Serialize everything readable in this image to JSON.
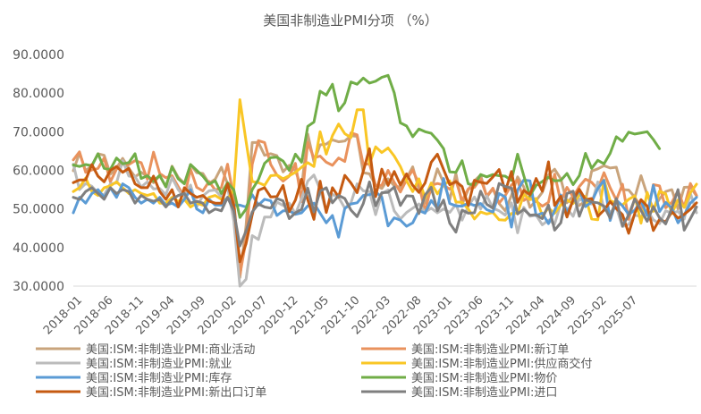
{
  "chart_data": {
    "type": "line",
    "title": "美国非制造业PMI分项 （%）",
    "xlabel": "",
    "ylabel": "",
    "ylim": [
      30,
      90
    ],
    "yticks": [
      "30.0000",
      "40.0000",
      "50.0000",
      "60.0000",
      "70.0000",
      "80.0000",
      "90.0000"
    ],
    "grid": false,
    "legend_position": "bottom",
    "x_start": "2018-01",
    "x_tick_labels": [
      "2018-01",
      "2018-06",
      "2018-11",
      "2019-04",
      "2019-09",
      "2020-02",
      "2020-07",
      "2020-12",
      "2021-05",
      "2021-10",
      "2022-03",
      "2022-08",
      "2023-01",
      "2023-06",
      "2023-11",
      "2024-04",
      "2024-09",
      "2025-02",
      "2025-07"
    ],
    "series": [
      {
        "name": "美国:ISM:非制造业PMI:商业活动",
        "color": "#C9A47C",
        "values": [
          59.9,
          64.5,
          59.9,
          61.2,
          64.3,
          63.9,
          59.0,
          60.6,
          63.1,
          60.5,
          58.3,
          59.5,
          58.5,
          56.8,
          58.6,
          55.8,
          61.1,
          58.2,
          56.6,
          61.5,
          59.4,
          59.2,
          56.6,
          57.7,
          60.8,
          56.5,
          50.5,
          32.2,
          45.7,
          67.2,
          67.2,
          63.9,
          64.3,
          63.8,
          59.6,
          61.3,
          59.9,
          55.5,
          69.4,
          62.2,
          66.6,
          66.8,
          67.9,
          67.4,
          67.6,
          69.0,
          68.8,
          59.4,
          59.1,
          56.1,
          55.3,
          57.8,
          56.0,
          55.6,
          57.9,
          60.9,
          55.1,
          51.5,
          54.9,
          60.4,
          56.8,
          52.4,
          59.2,
          51.2,
          55.0,
          57.3,
          58.8,
          53.1,
          55.2,
          51.4,
          49.5,
          53.5,
          58.3,
          55.7,
          50.4,
          52.2,
          54.3,
          58.8,
          60.3,
          57.8,
          51.6,
          53.4,
          50.9,
          52.1,
          59.8,
          60.4,
          61.2,
          60.6,
          60.8,
          55.0,
          54.9,
          53.0,
          58.6,
          53.7,
          50.1,
          52.6,
          54.5,
          55.0,
          50.0,
          55.6,
          55.7,
          53.4
        ]
      },
      {
        "name": "美国:ISM:非制造业PMI:新订单",
        "color": "#E9925D",
        "values": [
          62.7,
          64.8,
          59.5,
          60.1,
          60.5,
          63.2,
          57.0,
          60.3,
          61.6,
          61.5,
          62.5,
          62.0,
          57.7,
          64.7,
          59.2,
          58.1,
          58.6,
          55.8,
          53.1,
          60.3,
          55.6,
          54.7,
          57.1,
          54.9,
          55.5,
          61.6,
          52.9,
          32.9,
          41.9,
          61.6,
          67.7,
          67.2,
          61.5,
          58.8,
          57.2,
          58.5,
          61.8,
          51.9,
          67.2,
          63.2,
          63.7,
          62.1,
          61.3,
          63.2,
          62.3,
          69.7,
          69.2,
          61.5,
          61.7,
          56.1,
          56.1,
          60.0,
          56.9,
          54.4,
          57.6,
          60.1,
          56.5,
          49.2,
          56.1,
          56.6,
          56.2,
          55.1,
          57.4,
          52.1,
          55.2,
          55.6,
          57.8,
          53.3,
          55.4,
          51.5,
          53.5,
          56.2,
          57.5,
          52.2,
          53.2,
          52.0,
          50.7,
          51.7,
          59.0,
          51.9,
          55.6,
          53.1,
          55.8,
          57.7,
          56.9,
          55.1,
          59.4,
          55.5,
          52.3,
          56.4,
          47.3,
          52.9,
          50.7,
          48.5,
          56.3,
          56.0,
          50.3,
          51.7,
          54.7,
          50.4,
          56.6,
          53.5
        ]
      },
      {
        "name": "美国:ISM:非制造业PMI:就业",
        "color": "#BBBBBB",
        "values": [
          61.6,
          55.0,
          56.6,
          55.9,
          54.1,
          53.6,
          56.5,
          56.7,
          62.5,
          58.5,
          58.4,
          55.7,
          57.0,
          55.2,
          55.3,
          53.7,
          58.1,
          55.0,
          53.2,
          56.2,
          50.6,
          53.4,
          54.7,
          54.9,
          53.1,
          55.6,
          47.0,
          30.0,
          31.8,
          43.1,
          42.1,
          47.9,
          47.9,
          51.8,
          50.9,
          51.5,
          48.7,
          52.7,
          57.2,
          58.8,
          55.1,
          49.3,
          53.8,
          53.0,
          50.2,
          51.6,
          56.5,
          54.7,
          54.5,
          48.5,
          54.0,
          54.9,
          49.5,
          47.4,
          49.1,
          50.2,
          51.3,
          49.2,
          50.2,
          49.0,
          50.0,
          49.1,
          51.2,
          47.1,
          50.7,
          53.1,
          50.0,
          53.4,
          50.2,
          49.5,
          48.4,
          51.6,
          43.8,
          50.4,
          48.1,
          48.4,
          45.9,
          47.1,
          46.1,
          51.4,
          50.1,
          48.1,
          52.7,
          51.5,
          51.3,
          57.0,
          49.8,
          49.2,
          50.4,
          45.4,
          46.0,
          48.4,
          48.0,
          49.7,
          47.2,
          46.2,
          49.5,
          48.9,
          49.4,
          47.4,
          54.1,
          49.0
        ]
      },
      {
        "name": "美国:ISM:非制造业PMI:供应商交付",
        "color": "#F9C625",
        "values": [
          54.5,
          55.5,
          58.0,
          54.5,
          53.5,
          55.5,
          56.0,
          57.0,
          55.5,
          54.0,
          55.0,
          54.0,
          53.5,
          54.0,
          51.5,
          51.5,
          53.0,
          52.0,
          52.5,
          50.5,
          51.5,
          51.0,
          53.0,
          53.5,
          52.5,
          52.5,
          55.0,
          78.3,
          67.5,
          57.1,
          56.8,
          56.1,
          58.6,
          58.8,
          57.8,
          58.6,
          59.5,
          60.8,
          62.0,
          61.0,
          70.0,
          64.2,
          69.0,
          72.0,
          69.5,
          68.5,
          75.7,
          75.7,
          61.7,
          66.1,
          64.6,
          65.8,
          63.7,
          61.0,
          57.3,
          54.5,
          57.8,
          52.8,
          56.7,
          53.9,
          56.2,
          57.3,
          51.8,
          51.7,
          50.0,
          47.4,
          49.2,
          48.7,
          49.1,
          47.2,
          47.1,
          48.8,
          48.9,
          53.8,
          52.4,
          52.7,
          48.3,
          50.2,
          48.9,
          51.0,
          52.3,
          51.4,
          53.6,
          53.2,
          47.4,
          47.2,
          57.5,
          52.1,
          51.6,
          51.0,
          52.5,
          53.4,
          46.3,
          54.3,
          49.4,
          54.6,
          53.9,
          48.8,
          52.3,
          50.4,
          54.2,
          56.4
        ]
      },
      {
        "name": "美国:ISM:非制造业PMI:库存",
        "color": "#5B9BD5",
        "values": [
          49.0,
          53.0,
          51.5,
          54.0,
          55.0,
          53.0,
          55.5,
          53.0,
          56.5,
          55.5,
          53.0,
          51.5,
          52.5,
          51.5,
          53.0,
          51.0,
          51.5,
          50.5,
          52.5,
          55.0,
          50.0,
          49.0,
          52.5,
          51.0,
          51.0,
          53.0,
          51.0,
          51.0,
          50.5,
          53.7,
          51.0,
          52.5,
          52.1,
          48.3,
          49.5,
          49.5,
          48.6,
          49.0,
          50.8,
          51.5,
          48.9,
          46.4,
          48.3,
          42.7,
          50.1,
          51.3,
          51.6,
          53.5,
          53.7,
          54.4,
          53.1,
          45.6,
          47.7,
          47.1,
          45.5,
          46.4,
          49.6,
          48.9,
          52.2,
          50.1,
          57.9,
          51.4,
          50.8,
          50.7,
          51.5,
          50.9,
          51.4,
          49.8,
          49.2,
          54.0,
          53.1,
          45.3,
          54.9,
          57.5,
          57.3,
          48.3,
          48.9,
          46.2,
          49.6,
          53.6,
          49.0,
          52.1,
          54.9,
          50.6,
          51.8,
          55.3,
          57.4,
          47.0,
          52.3,
          50.8,
          48.6,
          49.7,
          52.1,
          48.3,
          56.1,
          49.3,
          51.7,
          50.2,
          46.4,
          48.4,
          51.5,
          53.0
        ]
      },
      {
        "name": "美国:ISM:非制造业PMI:物价",
        "color": "#70AD47",
        "values": [
          61.4,
          61.0,
          61.5,
          61.2,
          64.3,
          60.5,
          60.2,
          63.2,
          61.7,
          62.0,
          64.3,
          57.9,
          58.6,
          57.2,
          58.7,
          55.7,
          60.9,
          57.8,
          56.5,
          61.5,
          60.0,
          58.5,
          56.4,
          57.3,
          54.0,
          56.8,
          55.0,
          47.8,
          50.0,
          55.0,
          57.6,
          61.8,
          63.3,
          63.4,
          62.4,
          60.0,
          64.2,
          62.1,
          71.4,
          72.5,
          80.5,
          79.5,
          82.3,
          75.4,
          77.5,
          82.9,
          82.3,
          83.9,
          82.6,
          83.1,
          84.1,
          84.6,
          80.1,
          72.3,
          71.5,
          68.7,
          70.7,
          70.0,
          69.6,
          67.8,
          65.6,
          59.6,
          59.5,
          62.5,
          56.5,
          56.2,
          58.9,
          58.3,
          58.9,
          58.6,
          58.5,
          57.4,
          64.2,
          58.6,
          53.4,
          56.1,
          57.1,
          58.2,
          57.3,
          57.4,
          59.2,
          56.3,
          58.6,
          64.4,
          60.5,
          62.6,
          61.7,
          64.4,
          68.7,
          67.5,
          69.9,
          69.4,
          69.7,
          70.0,
          68.0,
          65.6
        ]
      },
      {
        "name": "美国:ISM:非制造业PMI:新出口订单",
        "color": "#C55A11",
        "values": [
          56.8,
          57.5,
          57.5,
          61.5,
          58.5,
          57.0,
          60.0,
          61.0,
          59.5,
          60.5,
          56.5,
          55.5,
          55.5,
          58.5,
          54.5,
          52.5,
          55.0,
          50.5,
          55.5,
          54.0,
          53.0,
          53.5,
          52.0,
          51.5,
          51.5,
          56.5,
          51.0,
          36.3,
          41.0,
          48.5,
          54.8,
          55.5,
          53.1,
          53.2,
          56.1,
          49.3,
          52.3,
          57.7,
          52.4,
          47.3,
          57.2,
          49.1,
          55.5,
          53.1,
          58.7,
          56.7,
          54.2,
          59.8,
          65.6,
          53.2,
          60.3,
          56.1,
          59.7,
          56.2,
          59.1,
          56.1,
          54.3,
          56.7,
          62.1,
          64.2,
          60.2,
          56.3,
          57.1,
          55.8,
          50.9,
          57.4,
          56.9,
          56.6,
          58.3,
          60.2,
          54.5,
          59.7,
          51.7,
          54.8,
          53.7,
          57.9,
          54.6,
          62.2,
          50.9,
          53.3,
          47.9,
          52.4,
          55.1,
          52.4,
          52.7,
          48.1,
          49.7,
          51.9,
          50.1,
          48.5,
          43.7,
          48.9,
          52.4,
          50.7,
          44.4,
          47.3,
          46.6,
          49.3,
          47.6,
          48.6,
          49.9,
          51.6
        ]
      },
      {
        "name": "美国:ISM:非制造业PMI:进口",
        "color": "#7F7F7F",
        "values": [
          53.0,
          52.5,
          54.5,
          55.5,
          54.0,
          52.5,
          55.5,
          54.0,
          55.0,
          54.5,
          51.5,
          53.5,
          52.5,
          52.0,
          52.5,
          50.5,
          52.5,
          53.5,
          54.0,
          51.5,
          52.0,
          51.5,
          49.0,
          50.0,
          49.5,
          53.0,
          49.5,
          40.4,
          44.3,
          49.2,
          51.3,
          50.5,
          50.2,
          52.7,
          52.1,
          47.5,
          49.0,
          49.9,
          55.4,
          49.2,
          54.6,
          55.5,
          51.6,
          53.5,
          52.7,
          49.7,
          48.0,
          51.4,
          57.0,
          50.8,
          54.2,
          54.3,
          55.7,
          50.9,
          53.4,
          53.3,
          48.8,
          53.6,
          55.6,
          49.5,
          52.3,
          46.3,
          44.0,
          49.7,
          48.9,
          49.0,
          54.6,
          51.2,
          50.2,
          56.6,
          55.8,
          55.4,
          48.7,
          49.9,
          48.4,
          48.5,
          47.5,
          51.0,
          44.5,
          46.4,
          54.0,
          54.6,
          48.1,
          52.4,
          51.8,
          51.6,
          50.7,
          47.6,
          52.7,
          45.6,
          48.4,
          52.6,
          49.6,
          46.8,
          50.6,
          47.7,
          46.1,
          50.2,
          55.0,
          44.5,
          47.5,
          50.5
        ]
      }
    ]
  }
}
